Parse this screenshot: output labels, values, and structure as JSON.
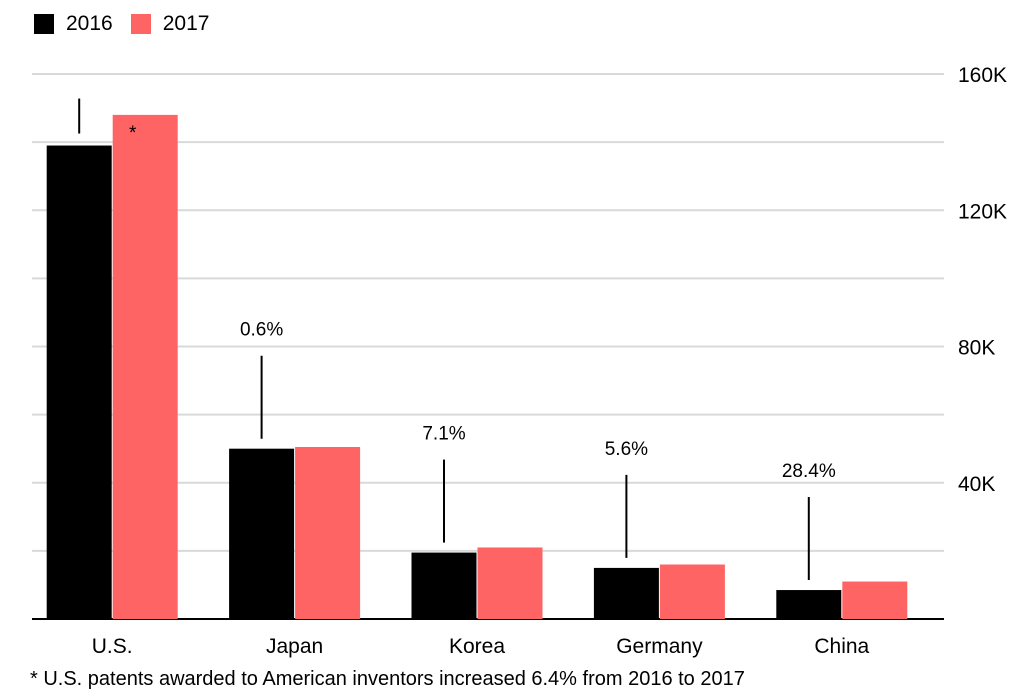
{
  "chart_data": {
    "type": "bar",
    "categories": [
      "U.S.",
      "Japan",
      "Korea",
      "Germany",
      "China"
    ],
    "series": [
      {
        "name": "2016",
        "values": [
          139000,
          50000,
          19500,
          15000,
          8500
        ],
        "color": "#000000"
      },
      {
        "name": "2017",
        "values": [
          148000,
          50500,
          21000,
          16000,
          11000
        ],
        "color": "#ff6464"
      }
    ],
    "annotations": [
      "*",
      "0.6%",
      "7.1%",
      "5.6%",
      "28.4%"
    ],
    "yticks": [
      {
        "value": 40000,
        "label": "40K"
      },
      {
        "value": 80000,
        "label": "80K"
      },
      {
        "value": 120000,
        "label": "120K"
      },
      {
        "value": 160000,
        "label": "160K"
      }
    ],
    "ylim": [
      0,
      160000
    ],
    "gridline_step": 20000,
    "grid": true,
    "legend_position": "top-left",
    "yaxis_position": "right"
  },
  "footnote": "* U.S. patents awarded to American inventors increased 6.4% from 2016 to 2017"
}
